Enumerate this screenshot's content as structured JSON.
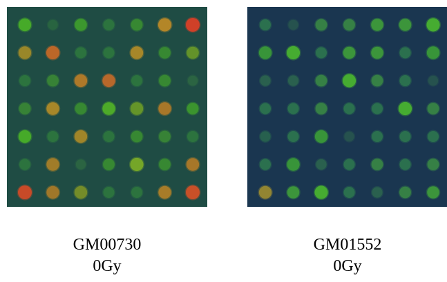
{
  "panels": [
    {
      "cell_line": "GM00730",
      "dose": "0Gy",
      "background_color": "#1f4c44",
      "spot_colors": [
        [
          "#48b028",
          "#2a6a40",
          "#3f9e2c",
          "#2f7a3e",
          "#3a9030",
          "#b88828",
          "#d04028"
        ],
        [
          "#a08a28",
          "#c06828",
          "#2f7a3e",
          "#2f7a3e",
          "#b08a28",
          "#3a9030",
          "#6a9a28"
        ],
        [
          "#2f7a3e",
          "#3a8a34",
          "#b87c28",
          "#c06a2a",
          "#2f7a3e",
          "#3a9030",
          "#2f6a42"
        ],
        [
          "#3a8a34",
          "#b08a28",
          "#3a9030",
          "#50b028",
          "#6a9a28",
          "#b07a28",
          "#3f9e2c"
        ],
        [
          "#48b028",
          "#2f7a3e",
          "#a88828",
          "#2f7a3e",
          "#3a9030",
          "#3a8a34",
          "#2f7a3e"
        ],
        [
          "#2f7a3e",
          "#a88028",
          "#2f6a42",
          "#3a9030",
          "#78a828",
          "#3a9030",
          "#b07a28"
        ],
        [
          "#c84a28",
          "#a87a28",
          "#7a9028",
          "#2f7a3e",
          "#2f7a3e",
          "#b08028",
          "#c85028"
        ]
      ],
      "spot_intensity": [
        [
          0.8,
          0.3,
          0.7,
          0.5,
          0.6,
          0.9,
          1.0
        ],
        [
          0.8,
          0.9,
          0.5,
          0.5,
          0.8,
          0.6,
          0.7
        ],
        [
          0.5,
          0.6,
          0.8,
          0.8,
          0.5,
          0.6,
          0.3
        ],
        [
          0.6,
          0.8,
          0.6,
          0.8,
          0.8,
          0.8,
          0.6
        ],
        [
          0.8,
          0.5,
          0.8,
          0.5,
          0.6,
          0.6,
          0.5
        ],
        [
          0.5,
          0.8,
          0.3,
          0.6,
          0.9,
          0.6,
          0.8
        ],
        [
          1.0,
          0.8,
          0.8,
          0.5,
          0.5,
          0.8,
          1.0
        ]
      ]
    },
    {
      "cell_line": "GM01552",
      "dose": "0Gy",
      "background_color": "#1a3650",
      "spot_colors": [
        [
          "#2f7a4e",
          "#2a5a4e",
          "#3a8a44",
          "#3a8a44",
          "#3f9e3a",
          "#3f9e3a",
          "#48b030"
        ],
        [
          "#3a9a38",
          "#48b030",
          "#2f7a4e",
          "#3f9e3a",
          "#3f9e3a",
          "#2f7a4e",
          "#3a9a38"
        ],
        [
          "#2f6a4e",
          "#2f6a4e",
          "#3a8a44",
          "#48b030",
          "#3a8a44",
          "#2f7a4e",
          "#2a5a4e"
        ],
        [
          "#2f7a4e",
          "#2f7a4e",
          "#3a8a44",
          "#2f7a4e",
          "#2f7a4e",
          "#48b030",
          "#3a8a44"
        ],
        [
          "#2a6a4e",
          "#2f7a4e",
          "#3a9a38",
          "#2a5a4e",
          "#2f7a4e",
          "#2f7a4e",
          "#2f7a4e"
        ],
        [
          "#2f7a4e",
          "#3a9a38",
          "#2f6a4e",
          "#2f7a4e",
          "#3a8a44",
          "#2f7a4e",
          "#3a8a44"
        ],
        [
          "#9a8a30",
          "#3f9e3a",
          "#48b030",
          "#2f7a4e",
          "#2f6a4e",
          "#3a8a44",
          "#3f9e3a"
        ]
      ],
      "spot_intensity": [
        [
          0.5,
          0.3,
          0.6,
          0.6,
          0.7,
          0.7,
          0.9
        ],
        [
          0.8,
          0.9,
          0.5,
          0.7,
          0.7,
          0.5,
          0.8
        ],
        [
          0.4,
          0.4,
          0.6,
          0.9,
          0.6,
          0.5,
          0.3
        ],
        [
          0.5,
          0.5,
          0.6,
          0.5,
          0.5,
          0.9,
          0.6
        ],
        [
          0.4,
          0.5,
          0.8,
          0.3,
          0.5,
          0.5,
          0.5
        ],
        [
          0.5,
          0.8,
          0.4,
          0.5,
          0.6,
          0.5,
          0.6
        ],
        [
          0.8,
          0.7,
          0.9,
          0.5,
          0.4,
          0.6,
          0.7
        ]
      ]
    }
  ]
}
